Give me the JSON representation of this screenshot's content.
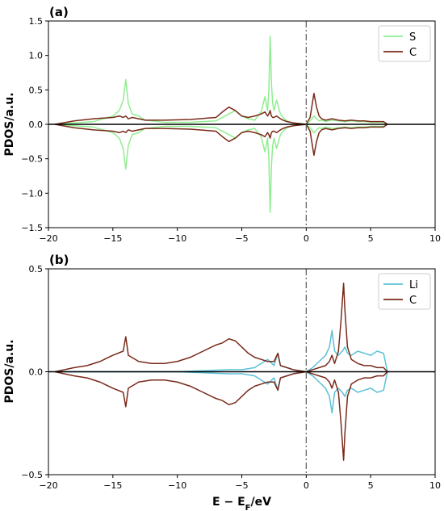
{
  "chart_data": [
    {
      "type": "line",
      "panel_label": "(a)",
      "title": "",
      "xlabel": "",
      "ylabel": "PDOS/a.u.",
      "xlim": [
        -20,
        10
      ],
      "ylim": [
        -1.5,
        1.5
      ],
      "xticks": [
        -20,
        -15,
        -10,
        -5,
        0,
        5,
        10
      ],
      "xtick_labels": [
        "−20",
        "−15",
        "−10",
        "−5",
        "0",
        "5",
        "10"
      ],
      "yticks": [
        -1.5,
        -1.0,
        -0.5,
        0.0,
        0.5,
        1.0,
        1.5
      ],
      "ytick_labels": [
        "−1.5",
        "−1.0",
        "−0.5",
        "0.0",
        "0.5",
        "1.0",
        "1.5"
      ],
      "fermi_line_x": 0,
      "legend_position": "top-right",
      "grid": false,
      "series": [
        {
          "name": "S",
          "color": "#90ee90",
          "x": [
            -19.5,
            -18,
            -16.5,
            -15,
            -14.5,
            -14.2,
            -14.0,
            -13.8,
            -13.5,
            -13.0,
            -12.5,
            -11,
            -9,
            -7,
            -6.5,
            -6.0,
            -5.5,
            -5.0,
            -4.5,
            -4.0,
            -3.5,
            -3.2,
            -3.0,
            -2.9,
            -2.8,
            -2.7,
            -2.6,
            -2.5,
            -2.3,
            -2.0,
            -1.8,
            -1.5,
            -1.0,
            -0.5,
            0.0,
            0.3,
            0.6,
            0.8,
            1.0,
            1.2,
            1.5,
            2.0,
            2.5,
            3.0,
            3.5,
            4.0,
            4.5,
            5.0,
            5.5,
            6.0,
            6.3
          ],
          "values": [
            0.0,
            0.02,
            0.04,
            0.12,
            0.2,
            0.35,
            0.65,
            0.3,
            0.15,
            0.12,
            0.06,
            0.03,
            0.03,
            0.05,
            0.1,
            0.15,
            0.2,
            0.12,
            0.08,
            0.06,
            0.18,
            0.4,
            0.2,
            0.5,
            1.28,
            0.6,
            0.3,
            0.2,
            0.35,
            0.15,
            0.1,
            0.05,
            0.02,
            0.01,
            0.0,
            0.05,
            0.12,
            0.08,
            0.05,
            0.06,
            0.04,
            0.06,
            0.05,
            0.04,
            0.05,
            0.04,
            0.04,
            0.03,
            0.03,
            0.03,
            0.0
          ]
        },
        {
          "name": "C",
          "color": "#7a2a1a",
          "x": [
            -19.5,
            -18,
            -16.5,
            -15,
            -14.5,
            -14.2,
            -14.0,
            -13.8,
            -13.5,
            -13.0,
            -12.5,
            -11,
            -9,
            -7,
            -6.5,
            -6.0,
            -5.5,
            -5.0,
            -4.5,
            -4.0,
            -3.5,
            -3.2,
            -3.0,
            -2.9,
            -2.8,
            -2.7,
            -2.6,
            -2.5,
            -2.3,
            -2.0,
            -1.8,
            -1.5,
            -1.0,
            -0.5,
            0.0,
            0.3,
            0.6,
            0.8,
            1.0,
            1.2,
            1.5,
            2.0,
            2.5,
            3.0,
            3.5,
            4.0,
            4.5,
            5.0,
            5.5,
            6.0,
            6.3
          ],
          "values": [
            0.0,
            0.05,
            0.08,
            0.1,
            0.12,
            0.1,
            0.12,
            0.08,
            0.1,
            0.08,
            0.06,
            0.06,
            0.07,
            0.1,
            0.18,
            0.25,
            0.2,
            0.12,
            0.1,
            0.12,
            0.15,
            0.18,
            0.12,
            0.15,
            0.2,
            0.12,
            0.1,
            0.1,
            0.12,
            0.08,
            0.06,
            0.04,
            0.02,
            0.01,
            0.0,
            0.1,
            0.45,
            0.25,
            0.12,
            0.08,
            0.06,
            0.08,
            0.06,
            0.05,
            0.06,
            0.05,
            0.05,
            0.04,
            0.04,
            0.04,
            0.0
          ]
        }
      ]
    },
    {
      "type": "line",
      "panel_label": "(b)",
      "title": "",
      "xlabel": "E − E_F/eV",
      "xlabel_main": "E − E",
      "xlabel_sub": "F",
      "xlabel_tail": "/eV",
      "ylabel": "PDOS/a.u.",
      "xlim": [
        -20,
        10
      ],
      "ylim": [
        -0.5,
        0.5
      ],
      "xticks": [
        -20,
        -15,
        -10,
        -5,
        0,
        5,
        10
      ],
      "xtick_labels": [
        "−20",
        "−15",
        "−10",
        "−5",
        "0",
        "5",
        "10"
      ],
      "yticks": [
        -0.5,
        0.0,
        0.5
      ],
      "ytick_labels": [
        "−0.5",
        "0.0",
        "0.5"
      ],
      "fermi_line_x": 0,
      "legend_position": "top-right",
      "grid": false,
      "series": [
        {
          "name": "Li",
          "color": "#5bc0d8",
          "x": [
            -19.5,
            -18,
            -16,
            -14,
            -12,
            -10,
            -8,
            -6,
            -5,
            -4,
            -3.5,
            -3.0,
            -2.5,
            -2.2,
            -2.0,
            -1.5,
            -1.0,
            -0.5,
            0.0,
            0.5,
            1.0,
            1.5,
            1.8,
            2.0,
            2.2,
            2.5,
            2.8,
            3.0,
            3.2,
            3.5,
            4.0,
            4.5,
            5.0,
            5.5,
            6.0,
            6.3
          ],
          "values": [
            0.0,
            0.0,
            0.0,
            0.0,
            0.0,
            0.0,
            0.005,
            0.01,
            0.01,
            0.02,
            0.04,
            0.06,
            0.03,
            0.09,
            0.03,
            0.02,
            0.01,
            0.005,
            0.0,
            0.02,
            0.05,
            0.08,
            0.12,
            0.2,
            0.1,
            0.08,
            0.1,
            0.12,
            0.09,
            0.08,
            0.1,
            0.09,
            0.08,
            0.1,
            0.09,
            0.0
          ]
        },
        {
          "name": "C",
          "color": "#7a2a1a",
          "x": [
            -19.5,
            -18,
            -17,
            -16,
            -15,
            -14.2,
            -14.0,
            -13.8,
            -13,
            -12,
            -11,
            -10,
            -9,
            -8,
            -7,
            -6.5,
            -6,
            -5.5,
            -5,
            -4.5,
            -4,
            -3.5,
            -3,
            -2.5,
            -2.2,
            -2.0,
            -1.5,
            -1.0,
            -0.5,
            0.0,
            0.5,
            1.0,
            1.5,
            1.8,
            2.0,
            2.2,
            2.5,
            2.7,
            2.9,
            3.0,
            3.2,
            3.5,
            4.0,
            4.5,
            5.0,
            5.5,
            6.0,
            6.3
          ],
          "values": [
            0.0,
            0.02,
            0.03,
            0.05,
            0.08,
            0.1,
            0.17,
            0.08,
            0.05,
            0.04,
            0.04,
            0.05,
            0.07,
            0.1,
            0.13,
            0.14,
            0.16,
            0.15,
            0.12,
            0.09,
            0.07,
            0.06,
            0.05,
            0.05,
            0.09,
            0.03,
            0.02,
            0.01,
            0.005,
            0.0,
            0.01,
            0.02,
            0.03,
            0.05,
            0.08,
            0.04,
            0.1,
            0.25,
            0.43,
            0.3,
            0.12,
            0.06,
            0.04,
            0.03,
            0.03,
            0.02,
            0.02,
            0.0
          ]
        }
      ]
    }
  ]
}
